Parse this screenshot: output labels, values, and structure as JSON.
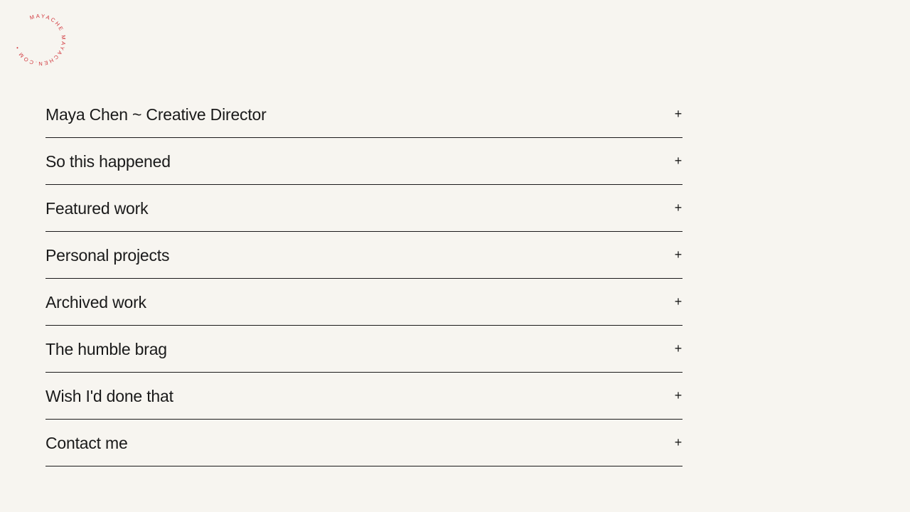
{
  "logo": {
    "text": "MAYACHE MAYACHEN.COM  •  ",
    "color": "#d0343a"
  },
  "accordion": {
    "items": [
      {
        "label": "Maya Chen ~ Creative Director",
        "icon": "plus-icon",
        "toggle": "+"
      },
      {
        "label": "So this happened",
        "icon": "plus-icon",
        "toggle": "+"
      },
      {
        "label": "Featured work",
        "icon": "plus-icon",
        "toggle": "+"
      },
      {
        "label": "Personal projects",
        "icon": "plus-icon",
        "toggle": "+"
      },
      {
        "label": "Archived work",
        "icon": "plus-icon",
        "toggle": "+"
      },
      {
        "label": "The humble brag",
        "icon": "plus-icon",
        "toggle": "+"
      },
      {
        "label": "Wish I'd done that",
        "icon": "plus-icon",
        "toggle": "+"
      },
      {
        "label": "Contact me",
        "icon": "plus-icon",
        "toggle": "+"
      }
    ]
  }
}
